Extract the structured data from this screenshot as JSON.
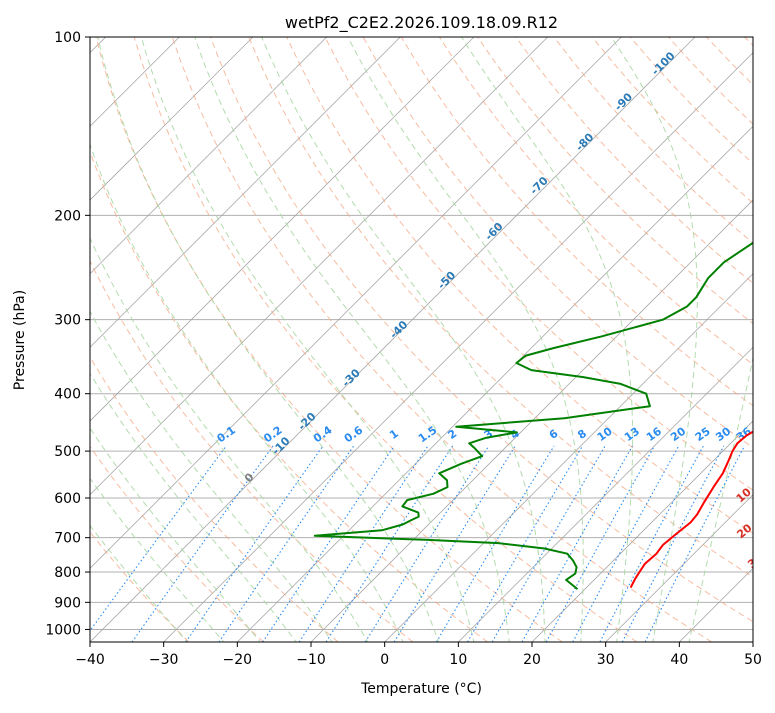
{
  "chart_data": {
    "type": "line",
    "title": "wetPf2_C2E2.2026.109.18.09.R12",
    "xlabel": "Temperature (°C)",
    "ylabel": "Pressure (hPa)",
    "xlim": [
      -40,
      50
    ],
    "ylim": [
      1050,
      100
    ],
    "x_ticks": [
      -40,
      -30,
      -20,
      -10,
      0,
      10,
      20,
      30,
      40,
      50
    ],
    "y_ticks": [
      100,
      200,
      300,
      400,
      500,
      600,
      700,
      800,
      900,
      1000
    ],
    "colors": {
      "temperature": "#ff0000",
      "dewpoint": "#008000",
      "isotherm": "#9e9e9e",
      "dry_adiabat": "#f4a582",
      "moist_adiabat": "#a6d5a0",
      "mixing_ratio": "#2a8cf0",
      "dry_label": "#d73027",
      "moist_label": "#2c7bb6",
      "zero_label": "#7f7f7f"
    },
    "series": [
      {
        "name": "Temperature",
        "points": [
          [
            26.0,
            850
          ],
          [
            25.4,
            820
          ],
          [
            25.1,
            800
          ],
          [
            24.7,
            775
          ],
          [
            24.9,
            745
          ],
          [
            24.6,
            720
          ],
          [
            24.9,
            690
          ],
          [
            25.3,
            660
          ],
          [
            25.1,
            640
          ],
          [
            24.4,
            610
          ],
          [
            23.6,
            575
          ],
          [
            23.0,
            545
          ],
          [
            22.1,
            520
          ],
          [
            21.3,
            500
          ],
          [
            20.9,
            485
          ],
          [
            21.1,
            470
          ],
          [
            22.0,
            455
          ],
          [
            22.5,
            440
          ],
          [
            22.4,
            425
          ],
          [
            21.6,
            410
          ],
          [
            20.2,
            395
          ],
          [
            19.4,
            375
          ],
          [
            19.2,
            350
          ],
          [
            18.8,
            335
          ],
          [
            18.0,
            320
          ],
          [
            16.0,
            300
          ],
          [
            14.1,
            280
          ],
          [
            12.2,
            260
          ],
          [
            10.6,
            240
          ],
          [
            9.4,
            225
          ],
          [
            8.2,
            210
          ],
          [
            7.1,
            200
          ],
          [
            5.6,
            185
          ],
          [
            4.3,
            172
          ],
          [
            3.0,
            160
          ],
          [
            1.8,
            148
          ],
          [
            0.4,
            135
          ],
          [
            -0.7,
            125
          ],
          [
            -1.4,
            116
          ],
          [
            -1.5,
            110
          ],
          [
            -1.0,
            106
          ],
          [
            0.8,
            103
          ],
          [
            2.1,
            101
          ],
          [
            2.6,
            100
          ]
        ]
      },
      {
        "name": "Dewpoint",
        "points": [
          [
            19.0,
            855
          ],
          [
            16.2,
            825
          ],
          [
            16.6,
            805
          ],
          [
            15.9,
            785
          ],
          [
            14.5,
            765
          ],
          [
            12.8,
            745
          ],
          [
            9.0,
            730
          ],
          [
            2.0,
            715
          ],
          [
            -8.0,
            706
          ],
          [
            -23.9,
            695
          ],
          [
            -15.5,
            680
          ],
          [
            -13.5,
            665
          ],
          [
            -13.0,
            655
          ],
          [
            -12.4,
            645
          ],
          [
            -13.0,
            635
          ],
          [
            -16.0,
            620
          ],
          [
            -16.2,
            605
          ],
          [
            -13.5,
            590
          ],
          [
            -12.5,
            575
          ],
          [
            -13.5,
            560
          ],
          [
            -15.5,
            545
          ],
          [
            -13.8,
            525
          ],
          [
            -12.0,
            510
          ],
          [
            -14.0,
            495
          ],
          [
            -15.5,
            485
          ],
          [
            -14.0,
            475
          ],
          [
            -10.5,
            465
          ],
          [
            -19.5,
            455
          ],
          [
            -6.0,
            440
          ],
          [
            4.0,
            420
          ],
          [
            1.8,
            400
          ],
          [
            -3.0,
            385
          ],
          [
            -9.0,
            375
          ],
          [
            -17.0,
            365
          ],
          [
            -20.0,
            355
          ],
          [
            -19.7,
            345
          ],
          [
            -17.0,
            335
          ],
          [
            -12.0,
            320
          ],
          [
            -6.0,
            300
          ],
          [
            -4.5,
            285
          ],
          [
            -4.5,
            275
          ],
          [
            -5.0,
            265
          ],
          [
            -5.5,
            255
          ],
          [
            -5.5,
            240
          ],
          [
            -4.0,
            220
          ],
          [
            -3.0,
            205
          ],
          [
            -2.0,
            198
          ],
          [
            0.2,
            188
          ],
          [
            3.0,
            178
          ],
          [
            2.2,
            165
          ],
          [
            1.0,
            152
          ],
          [
            -0.8,
            140
          ],
          [
            -2.3,
            128
          ],
          [
            -3.0,
            118
          ],
          [
            -3.0,
            112
          ],
          [
            -2.2,
            108
          ],
          [
            -0.3,
            104
          ],
          [
            0.8,
            101.5
          ],
          [
            1.5,
            100
          ]
        ]
      }
    ],
    "mixing_ratio_labels": [
      "0.1",
      "0.2",
      "0.4",
      "0.6",
      "1",
      "1.5",
      "2",
      "3",
      "4",
      "6",
      "8",
      "10",
      "13",
      "16",
      "20",
      "25",
      "30",
      "36"
    ],
    "dry_adiabat_labels": [
      "10",
      "20",
      "30",
      "40"
    ],
    "moist_adiabat_labels": [
      "-100",
      "-90",
      "-80",
      "-70",
      "-60",
      "-50",
      "-40",
      "-30",
      "-20",
      "-10",
      "0"
    ]
  }
}
